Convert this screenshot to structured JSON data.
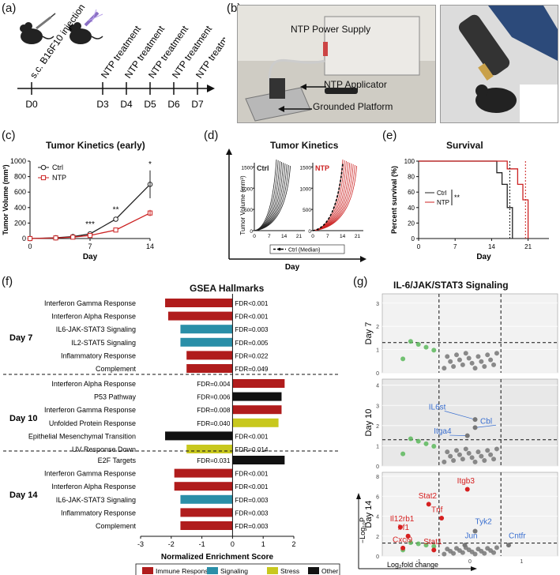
{
  "panels": {
    "a": "(a)",
    "b": "(b)",
    "c": "(c)",
    "d": "(d)",
    "e": "(e)",
    "f": "(f)",
    "g": "(g)"
  },
  "timeline": {
    "injection_label": "s.c. B16F10 injection",
    "treatment_label": "NTP treatment",
    "days": [
      "D0",
      "D3",
      "D4",
      "D5",
      "D6",
      "D7"
    ]
  },
  "photo": {
    "power_supply": "NTP Power Supply",
    "applicator": "NTP Applicator",
    "platform": "Grounded Platform"
  },
  "colors": {
    "ctrl": "#222222",
    "ntp": "#cc2222",
    "immune": "#b01c1c",
    "signaling": "#2a8fa8",
    "stress": "#c8c81e",
    "other": "#111111",
    "green": "#5cb85c",
    "blue_gene": "#3a6fd0"
  },
  "chart_c": {
    "title": "Tumor Kinetics (early)",
    "ylabel": "Tumor Volume (mm³)",
    "xlabel": "Day",
    "legend": [
      "Ctrl",
      "NTP"
    ],
    "yticks": [
      "0",
      "200",
      "400",
      "600",
      "800",
      "1000"
    ],
    "xticks": [
      "0",
      "7",
      "14"
    ],
    "stars": [
      "***",
      "**",
      "*"
    ]
  },
  "chart_d": {
    "title": "Tumor Kinetics",
    "ylabel": "Tumor Volume (mm³)",
    "xlabel": "Day",
    "ctrl_label": "Ctrl",
    "ntp_label": "NTP",
    "yticks": [
      "0",
      "500",
      "1000",
      "1500"
    ],
    "xticks": [
      "0",
      "7",
      "14",
      "21"
    ],
    "legend": "Ctrl (Median)"
  },
  "chart_e": {
    "title": "Survival",
    "ylabel": "Percent survival (%)",
    "xlabel": "Day",
    "legend": [
      "Ctrl",
      "NTP"
    ],
    "sig": "**",
    "yticks": [
      "0",
      "20",
      "40",
      "60",
      "80",
      "100"
    ],
    "xticks": [
      "0",
      "7",
      "14",
      "21"
    ]
  },
  "chart_f": {
    "title": "GSEA Hallmarks",
    "xlabel": "Normalized Enrichment Score",
    "xticks": [
      "-3",
      "-2",
      "-1",
      "0",
      "1",
      "2"
    ],
    "groups": [
      "Day 7",
      "Day 10",
      "Day 14"
    ],
    "legend": [
      "Immune Response",
      "Signaling",
      "Stress",
      "Other"
    ]
  },
  "chart_g": {
    "title": "IL-6/JAK/STAT3 Signaling",
    "facets": [
      "Day 7",
      "Day 10",
      "Day 14"
    ],
    "xlabel": "Log₂fold change",
    "ylabel": "−Log₁₀P",
    "xticks": [
      "-1",
      "0",
      "1"
    ],
    "day7_yticks": [
      "0",
      "1",
      "2",
      "3"
    ],
    "day10_yticks": [
      "0",
      "1",
      "2",
      "3",
      "4"
    ],
    "day14_yticks": [
      "0",
      "2",
      "4",
      "6",
      "8"
    ],
    "genes_day10": [
      "IL6st",
      "Cbl",
      "Itga4"
    ],
    "genes_day14_red": [
      "Itgb3",
      "Stat2",
      "Tnf",
      "Il12rb1",
      "Irf1",
      "Cxcl9",
      "Stat1"
    ],
    "genes_day14_blue": [
      "Tyk2",
      "Jun",
      "Cntfr"
    ]
  },
  "chart_data": [
    {
      "type": "line",
      "title": "Tumor Kinetics (early)",
      "xlabel": "Day",
      "ylabel": "Tumor Volume (mm³)",
      "xlim": [
        0,
        14
      ],
      "ylim": [
        0,
        1000
      ],
      "x": [
        0,
        3,
        5,
        7,
        10,
        14
      ],
      "series": [
        {
          "name": "Ctrl",
          "values": [
            0,
            10,
            25,
            60,
            250,
            700
          ]
        },
        {
          "name": "NTP",
          "values": [
            0,
            8,
            18,
            40,
            110,
            330
          ]
        }
      ]
    },
    {
      "type": "line",
      "title": "Survival",
      "xlabel": "Day",
      "ylabel": "Percent survival (%)",
      "xlim": [
        0,
        25
      ],
      "ylim": [
        0,
        100
      ],
      "series": [
        {
          "name": "Ctrl",
          "x": [
            0,
            14,
            15,
            16,
            17,
            18
          ],
          "values": [
            100,
            100,
            85,
            70,
            40,
            0
          ]
        },
        {
          "name": "NTP",
          "x": [
            0,
            15,
            17,
            19,
            20,
            21
          ],
          "values": [
            100,
            100,
            90,
            70,
            50,
            0
          ]
        }
      ]
    },
    {
      "type": "bar",
      "title": "GSEA Hallmarks",
      "xlabel": "Normalized Enrichment Score",
      "xlim": [
        -3,
        2
      ],
      "rows": [
        {
          "group": "Day 7",
          "label": "Interferon Gamma Response",
          "value": -2.2,
          "fdr": "FDR<0.001",
          "cat": "immune"
        },
        {
          "group": "Day 7",
          "label": "Interferon Alpha Response",
          "value": -2.1,
          "fdr": "FDR<0.001",
          "cat": "immune"
        },
        {
          "group": "Day 7",
          "label": "IL6-JAK-STAT3 Signaling",
          "value": -1.7,
          "fdr": "FDR=0.003",
          "cat": "signaling"
        },
        {
          "group": "Day 7",
          "label": "IL2-STAT5 Signaling",
          "value": -1.7,
          "fdr": "FDR=0.005",
          "cat": "signaling"
        },
        {
          "group": "Day 7",
          "label": "Inflammatory Response",
          "value": -1.5,
          "fdr": "FDR=0.022",
          "cat": "immune"
        },
        {
          "group": "Day 7",
          "label": "Complement",
          "value": -1.5,
          "fdr": "FDR=0.049",
          "cat": "immune"
        },
        {
          "group": "Day 10",
          "label": "Interferon Alpha Response",
          "value": 1.7,
          "fdr": "FDR=0.004",
          "cat": "immune"
        },
        {
          "group": "Day 10",
          "label": "P53 Pathway",
          "value": 1.6,
          "fdr": "FDR=0.006",
          "cat": "other"
        },
        {
          "group": "Day 10",
          "label": "Interferon Gamma Response",
          "value": 1.6,
          "fdr": "FDR=0.008",
          "cat": "immune"
        },
        {
          "group": "Day 10",
          "label": "Unfolded Protein Response",
          "value": 1.5,
          "fdr": "FDR=0.040",
          "cat": "stress"
        },
        {
          "group": "Day 10",
          "label": "Epithelial Mesenchymal Transition",
          "value": -2.2,
          "fdr": "FDR<0.001",
          "cat": "other"
        },
        {
          "group": "Day 10",
          "label": "UV Response Down",
          "value": -1.5,
          "fdr": "FDR=0.014",
          "cat": "stress"
        },
        {
          "group": "Day 14",
          "label": "E2F Targets",
          "value": 1.7,
          "fdr": "FDR=0.031",
          "cat": "other"
        },
        {
          "group": "Day 14",
          "label": "Interferon Gamma Response",
          "value": -1.9,
          "fdr": "FDR<0.001",
          "cat": "immune"
        },
        {
          "group": "Day 14",
          "label": "Interferon Alpha Response",
          "value": -1.9,
          "fdr": "FDR<0.001",
          "cat": "immune"
        },
        {
          "group": "Day 14",
          "label": "IL6-JAK-STAT3 Signaling",
          "value": -1.7,
          "fdr": "FDR=0.003",
          "cat": "signaling"
        },
        {
          "group": "Day 14",
          "label": "Inflammatory Response",
          "value": -1.7,
          "fdr": "FDR=0.003",
          "cat": "immune"
        },
        {
          "group": "Day 14",
          "label": "Complement",
          "value": -1.7,
          "fdr": "FDR=0.003",
          "cat": "immune"
        }
      ]
    }
  ]
}
